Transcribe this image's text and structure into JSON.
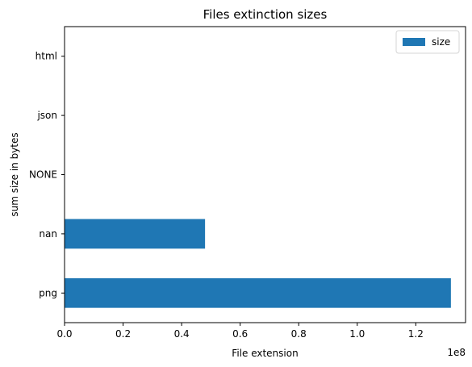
{
  "chart_data": {
    "type": "bar",
    "orientation": "horizontal",
    "title": "Files extinction sizes",
    "xlabel": "File extension",
    "ylabel": "sum size in bytes",
    "x_scale_note": "1e8",
    "categories": [
      "png",
      "nan",
      "NONE",
      "json",
      "html"
    ],
    "series": [
      {
        "name": "size",
        "color": "#1f77b4",
        "values": [
          132000000,
          48000000,
          0,
          0,
          0
        ]
      }
    ],
    "xlim": [
      0,
      137000000
    ],
    "x_ticks": [
      0,
      20000000,
      40000000,
      60000000,
      80000000,
      100000000,
      120000000
    ],
    "x_tick_labels": [
      "0.0",
      "0.2",
      "0.4",
      "0.6",
      "0.8",
      "1.0",
      "1.2"
    ],
    "grid": false,
    "legend_position": "top-right"
  }
}
